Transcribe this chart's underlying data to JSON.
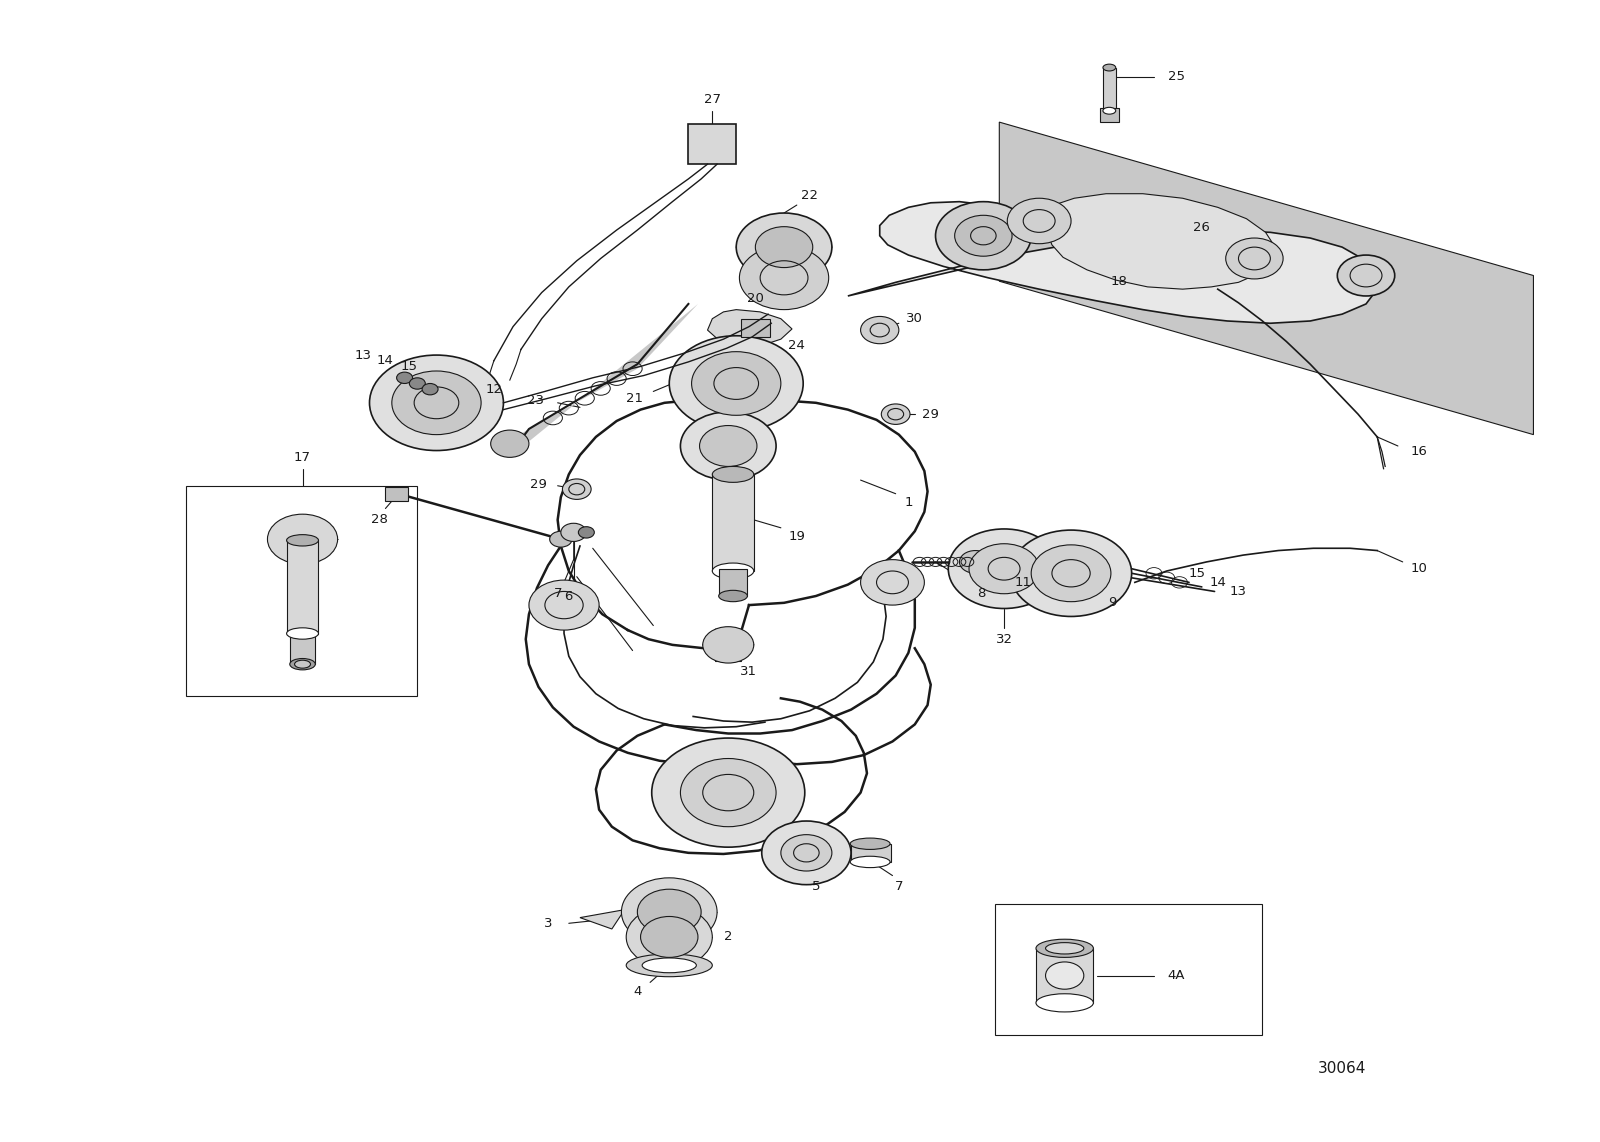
{
  "background_color": "#ffffff",
  "figure_width": 16.0,
  "figure_height": 11.42,
  "dpi": 100,
  "catalog_number": "30064",
  "line_color": "#1a1a1a",
  "text_color": "#1a1a1a",
  "label_fontsize": 9.5
}
